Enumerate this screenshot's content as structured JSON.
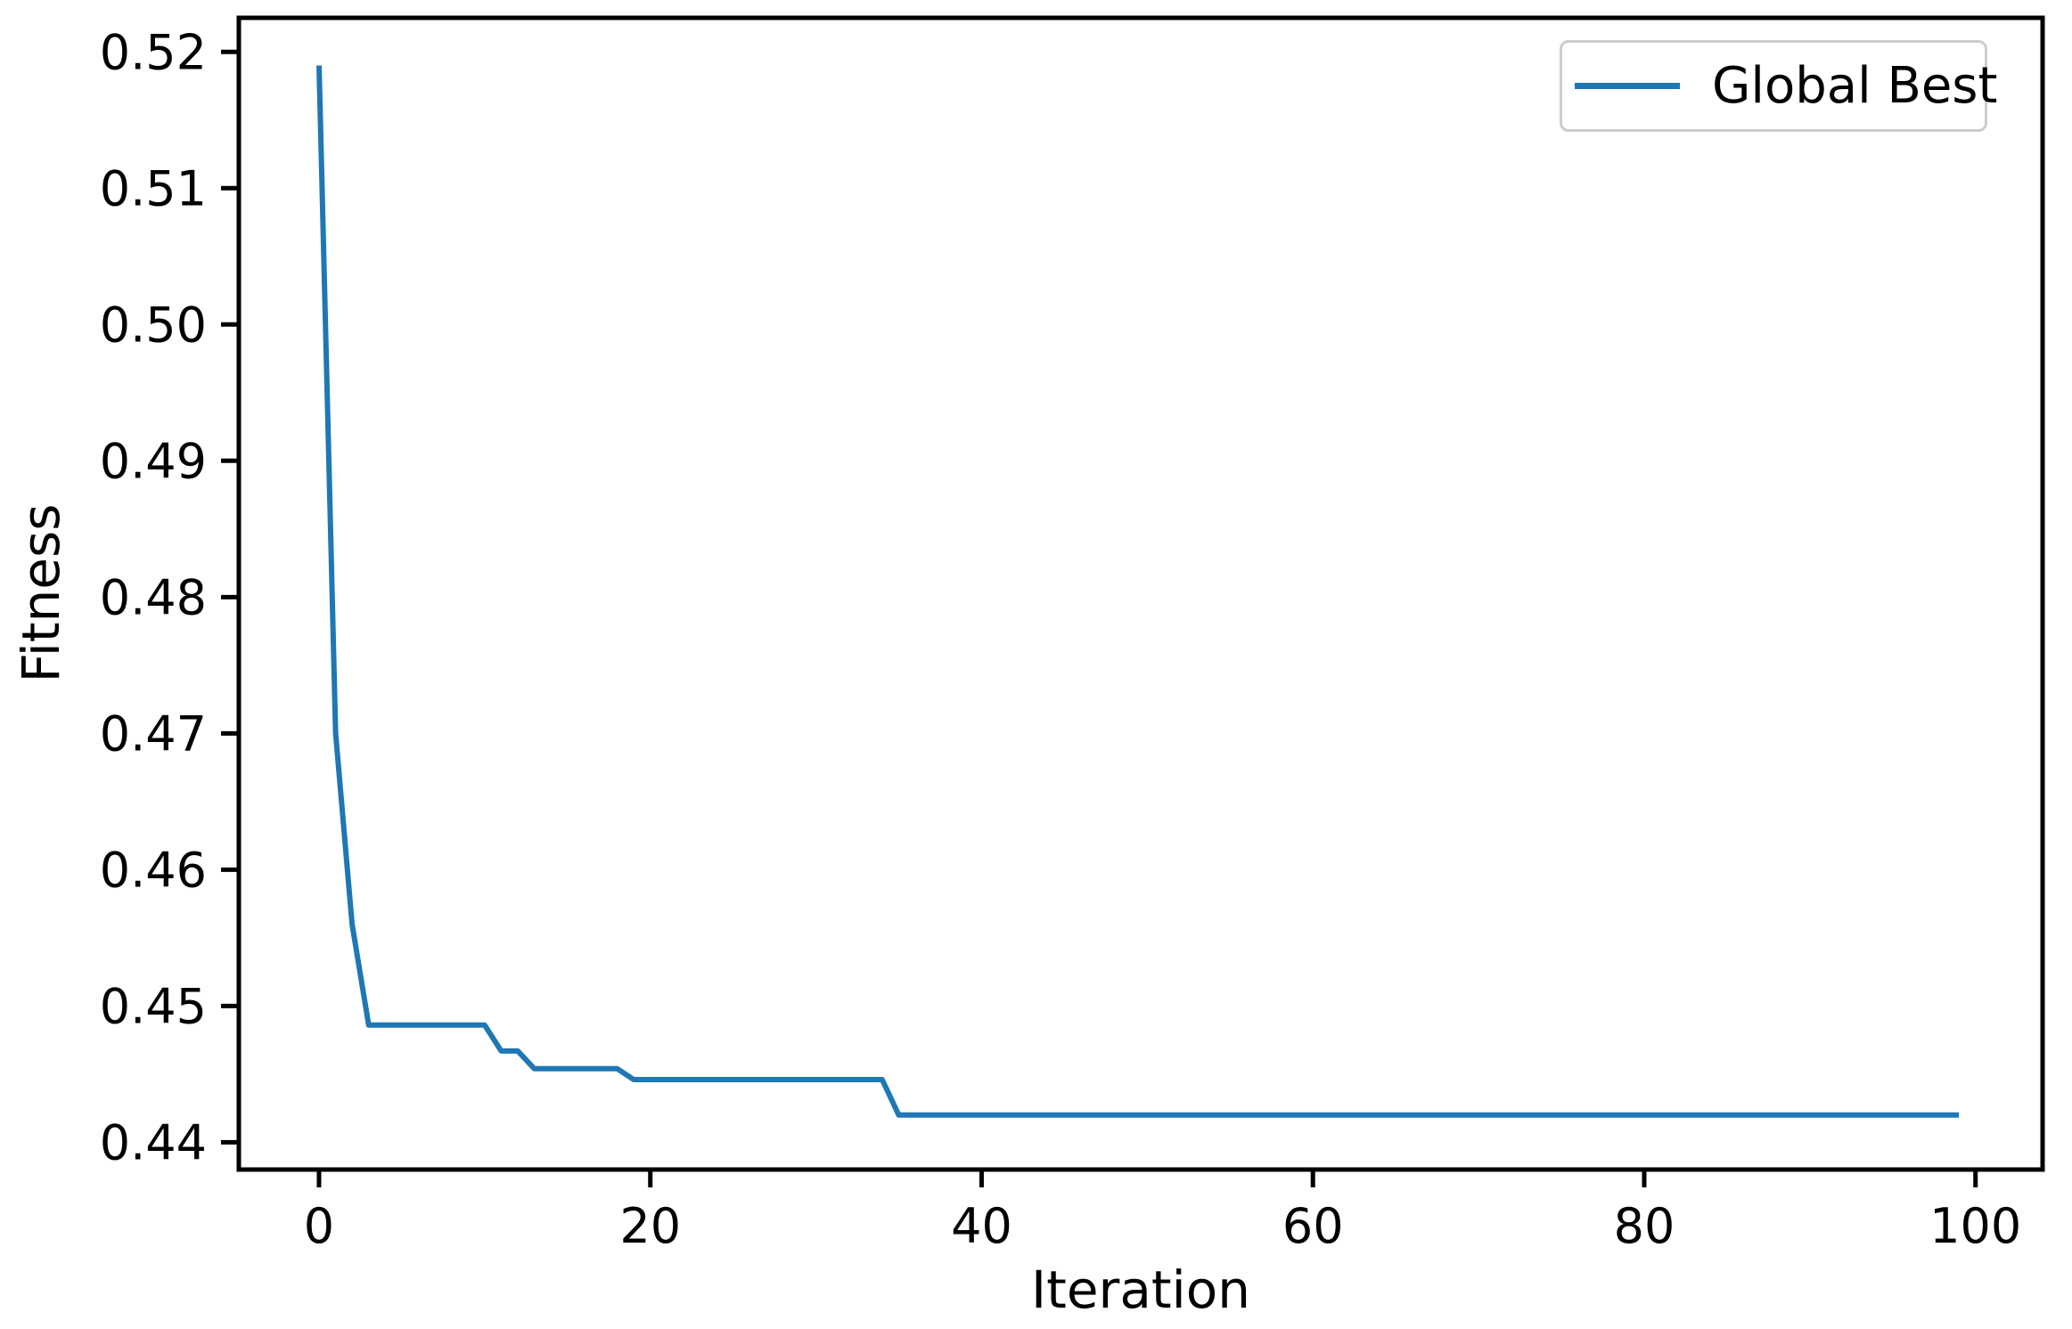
{
  "figure": {
    "background": "#ffffff",
    "text_color": "#000000",
    "spine_color": "#000000"
  },
  "chart_data": {
    "type": "line",
    "title": "",
    "xlabel": "Iteration",
    "ylabel": "Fitness",
    "grid": false,
    "xlim": [
      -4.84,
      104.05
    ],
    "ylim": [
      0.438,
      0.5225
    ],
    "xticks": {
      "values": [
        0,
        20,
        40,
        60,
        80,
        100
      ],
      "labels": [
        "0",
        "20",
        "40",
        "60",
        "80",
        "100"
      ]
    },
    "yticks": {
      "values": [
        0.44,
        0.45,
        0.46,
        0.47,
        0.48,
        0.49,
        0.5,
        0.51,
        0.52
      ],
      "labels": [
        "0.44",
        "0.45",
        "0.46",
        "0.47",
        "0.48",
        "0.49",
        "0.50",
        "0.51",
        "0.52"
      ]
    },
    "series": [
      {
        "name": "Global Best",
        "color": "#1f77b4",
        "line_width": 6,
        "x": [
          0,
          1,
          2,
          3,
          10,
          11,
          12,
          13,
          18,
          19,
          34,
          35,
          99
        ],
        "y": [
          0.519,
          0.47,
          0.456,
          0.4486,
          0.4486,
          0.4467,
          0.4467,
          0.4454,
          0.4454,
          0.4446,
          0.4446,
          0.442,
          0.442
        ]
      }
    ],
    "legend": {
      "position": "upper right",
      "entries": [
        {
          "label": "Global Best",
          "color": "#1f77b4"
        }
      ]
    }
  }
}
